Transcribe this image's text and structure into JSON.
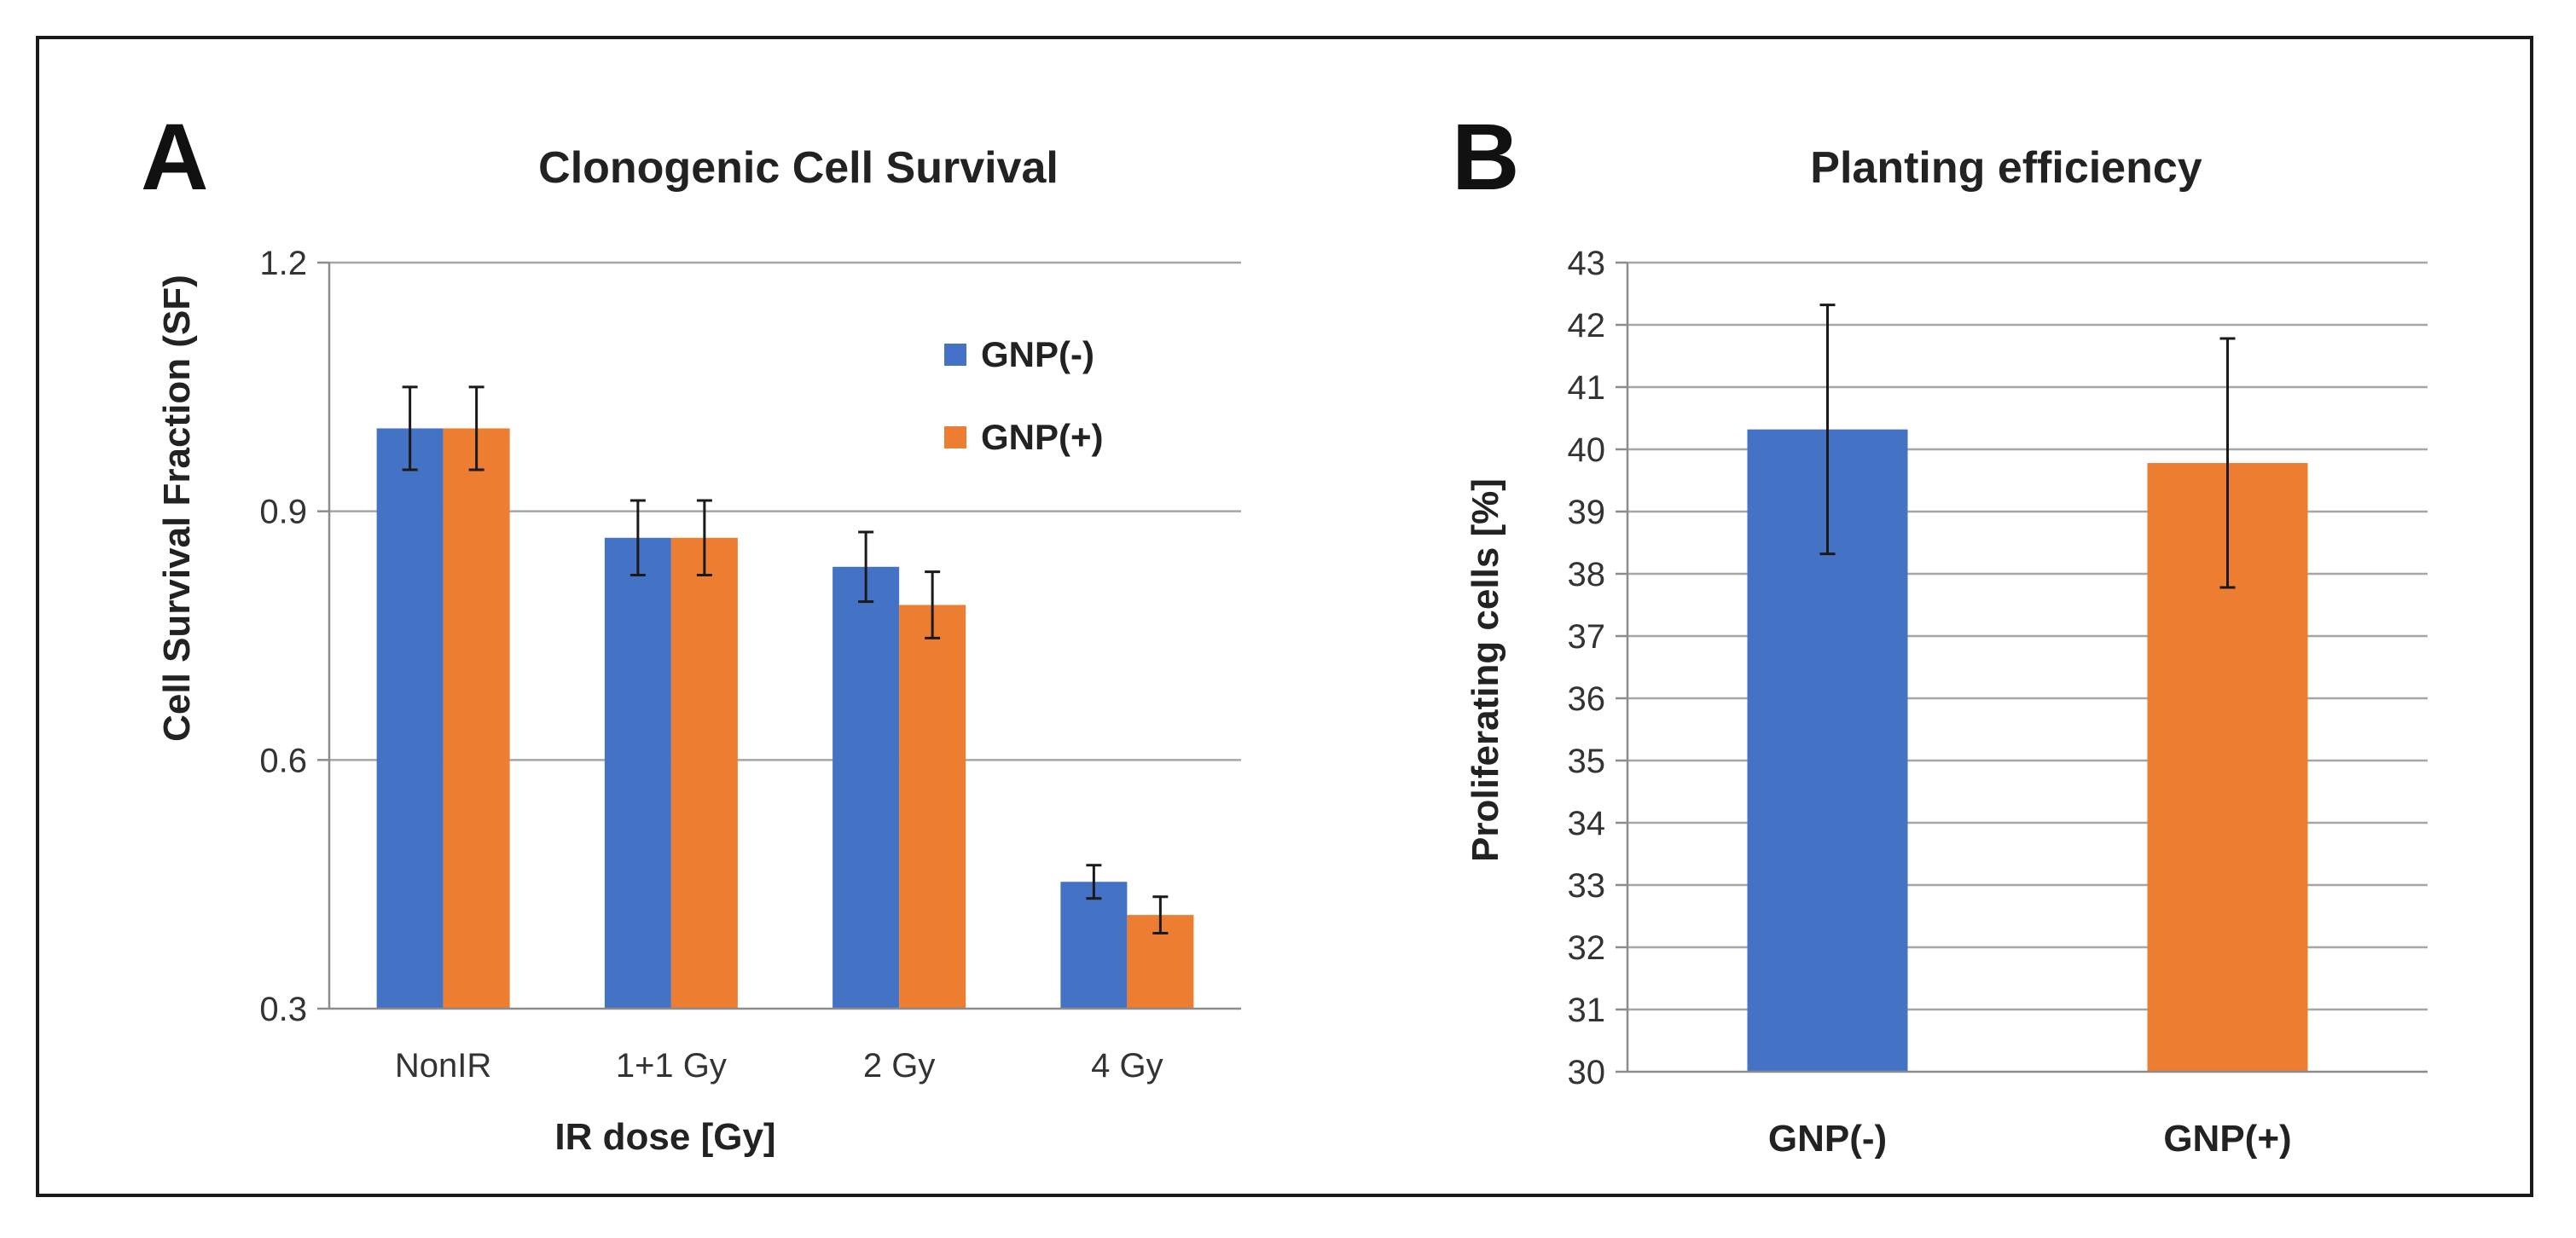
{
  "chart_data": [
    {
      "type": "bar",
      "panel_label": "A",
      "title": "Clonogenic Cell Survival",
      "xlabel": "IR dose [Gy]",
      "ylabel": "Cell Survival Fraction (SF)",
      "categories": [
        "NonIR",
        "1+1 Gy",
        "2 Gy",
        "4 Gy"
      ],
      "ylim": [
        0.3,
        1.2
      ],
      "yticks": [
        "0.3",
        "0.6",
        "0.9",
        "1.2"
      ],
      "ytick_values": [
        0.3,
        0.6,
        0.9,
        1.2
      ],
      "grid": true,
      "legend_position": "top-right",
      "series": [
        {
          "name": "GNP(-)",
          "color": "#4472c4",
          "values": [
            1.0,
            0.868,
            0.833,
            0.453
          ],
          "errors": [
            0.05,
            0.045,
            0.042,
            0.02
          ]
        },
        {
          "name": "GNP(+)",
          "color": "#ed7d31",
          "values": [
            1.0,
            0.868,
            0.787,
            0.413
          ],
          "errors": [
            0.05,
            0.045,
            0.04,
            0.022
          ]
        }
      ]
    },
    {
      "type": "bar",
      "panel_label": "B",
      "title": "Planting efficiency",
      "xlabel": "",
      "ylabel": "Proliferating  cells [%]",
      "categories": [
        "GNP(-)",
        "GNP(+)"
      ],
      "ylim": [
        30,
        43
      ],
      "yticks": [
        "30",
        "31",
        "32",
        "33",
        "34",
        "35",
        "36",
        "37",
        "38",
        "39",
        "40",
        "41",
        "42",
        "43"
      ],
      "ytick_values": [
        30,
        31,
        32,
        33,
        34,
        35,
        36,
        37,
        38,
        39,
        40,
        41,
        42,
        43
      ],
      "grid": true,
      "values": [
        40.32,
        39.78
      ],
      "errors": [
        2.0,
        2.0
      ],
      "colors": [
        "#4472c4",
        "#ed7d31"
      ]
    }
  ]
}
